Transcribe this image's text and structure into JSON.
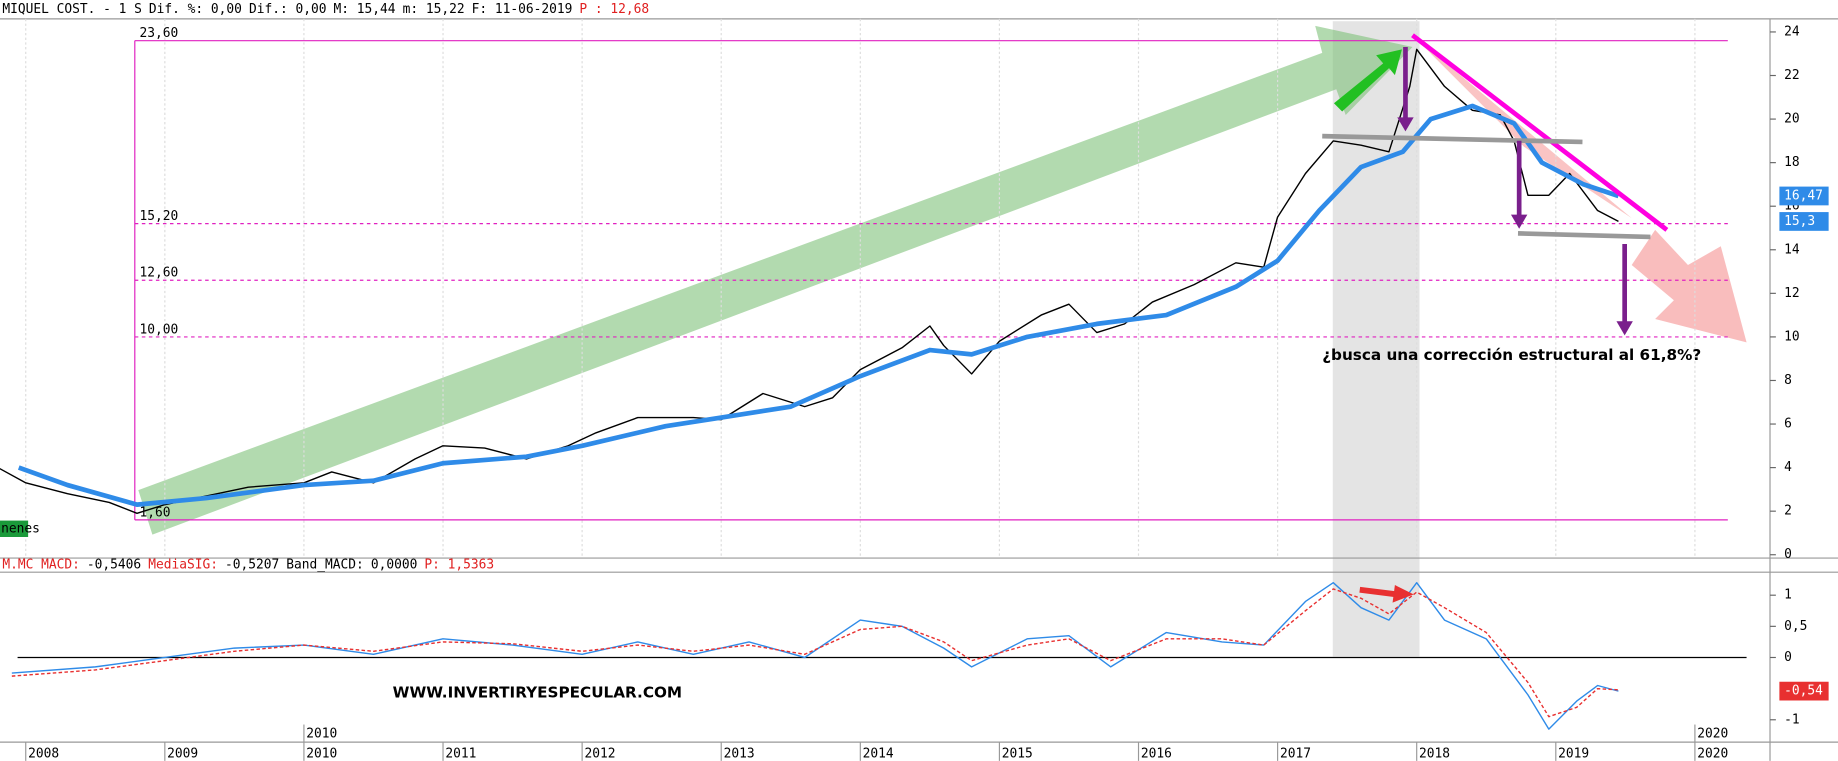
{
  "chart_data": [
    {
      "type": "line",
      "header": [
        {
          "text": "MIQUEL COST. -  1 S",
          "color": "#000000"
        },
        {
          "text": "Dif. %: 0,00",
          "color": "#000000"
        },
        {
          "text": "Dif.: 0,00",
          "color": "#000000"
        },
        {
          "text": "M: 15,44",
          "color": "#000000"
        },
        {
          "text": "m: 15,22",
          "color": "#000000"
        },
        {
          "text": "F: 11-06-2019",
          "color": "#000000"
        },
        {
          "text": "P : 12,68",
          "color": "#e02020"
        }
      ],
      "ylim": [
        -0.1,
        24.6
      ],
      "yticks": [
        0,
        2,
        4,
        6,
        8,
        10,
        12,
        14,
        16,
        18,
        20,
        22,
        24
      ],
      "levels": [
        {
          "value": 23.6,
          "label": "23,60",
          "dashed": false
        },
        {
          "value": 15.2,
          "label": "15,20",
          "dashed": true
        },
        {
          "value": 12.6,
          "label": "12,60",
          "dashed": true
        },
        {
          "value": 10,
          "label": "10,00",
          "dashed": true
        },
        {
          "value": 1.6,
          "label": "1,60",
          "dashed": false
        }
      ],
      "last_values": [
        {
          "value": 16.47,
          "label": "16,47",
          "color": "#2f8be8"
        },
        {
          "value": 15.3,
          "label": "15,3",
          "color": "#2f8be8"
        }
      ],
      "annotation": "¿busca una corrección estructural al 61,8%?",
      "side_label": "nenes",
      "series": [
        {
          "color": "#000000",
          "x": [
            2007.8,
            2008.0,
            2008.3,
            2008.6,
            2008.8,
            2009.0,
            2009.3,
            2009.6,
            2010.0,
            2010.2,
            2010.5,
            2010.8,
            2011.0,
            2011.3,
            2011.6,
            2011.9,
            2012.1,
            2012.4,
            2012.8,
            2013.0,
            2013.3,
            2013.6,
            2013.8,
            2014.0,
            2014.3,
            2014.5,
            2014.6,
            2014.8,
            2015.0,
            2015.3,
            2015.5,
            2015.7,
            2015.9,
            2016.1,
            2016.4,
            2016.7,
            2016.9,
            2017.0,
            2017.2,
            2017.4,
            2017.6,
            2017.8,
            2017.95,
            2018.0,
            2018.2,
            2018.4,
            2018.6,
            2018.7,
            2018.8,
            2018.95,
            2019.1,
            2019.3,
            2019.45
          ],
          "values": [
            4.0,
            3.3,
            2.8,
            2.4,
            1.9,
            2.3,
            2.7,
            3.1,
            3.3,
            3.8,
            3.3,
            4.4,
            5.0,
            4.9,
            4.4,
            5.0,
            5.6,
            6.3,
            6.3,
            6.2,
            7.4,
            6.8,
            7.2,
            8.5,
            9.5,
            10.5,
            9.6,
            8.3,
            9.8,
            11.0,
            11.5,
            10.2,
            10.6,
            11.6,
            12.4,
            13.4,
            13.2,
            15.5,
            17.5,
            19.0,
            18.8,
            18.5,
            21.5,
            23.2,
            21.5,
            20.4,
            20.2,
            19.0,
            16.5,
            16.5,
            17.5,
            15.8,
            15.3
          ]
        },
        {
          "color": "#2f8be8",
          "x": [
            2007.95,
            2008.3,
            2008.8,
            2009.3,
            2010.0,
            2010.5,
            2011.0,
            2011.6,
            2012.0,
            2012.6,
            2013.0,
            2013.5,
            2014.0,
            2014.5,
            2014.8,
            2015.2,
            2015.7,
            2016.2,
            2016.7,
            2017.0,
            2017.3,
            2017.6,
            2017.9,
            2018.1,
            2018.4,
            2018.7,
            2018.9,
            2019.2,
            2019.45
          ],
          "values": [
            4.0,
            3.2,
            2.3,
            2.6,
            3.2,
            3.4,
            4.2,
            4.5,
            5.0,
            5.9,
            6.3,
            6.8,
            8.2,
            9.4,
            9.2,
            10.0,
            10.6,
            11.0,
            12.3,
            13.5,
            15.8,
            17.8,
            18.5,
            20.0,
            20.6,
            19.8,
            18.0,
            17.0,
            16.47
          ]
        }
      ]
    },
    {
      "type": "line",
      "header": [
        {
          "text": "M.MC MACD:",
          "color": "#e02020"
        },
        {
          "text": "-0,5406",
          "color": "#000000"
        },
        {
          "text": "MediaSIG:",
          "color": "#e02020"
        },
        {
          "text": "-0,5207",
          "color": "#000000"
        },
        {
          "text": "Band_MACD:",
          "color": "#000000"
        },
        {
          "text": "0,0000",
          "color": "#000000"
        },
        {
          "text": "P: 1,5363",
          "color": "#e02020"
        }
      ],
      "xlim": [
        2007.815,
        2020.54
      ],
      "xticks": [
        2008,
        2009,
        2010,
        2011,
        2012,
        2013,
        2014,
        2015,
        2016,
        2017,
        2018,
        2019,
        2020
      ],
      "decade_ticks": [
        2010,
        2020
      ],
      "ylim": [
        -1.34,
        1.37
      ],
      "yticks": [
        1,
        {
          "value": 0.5,
          "label": "0,5"
        },
        0,
        -1
      ],
      "last_values": [
        {
          "value": -0.54,
          "label": "-0,54",
          "color": "#e83030"
        }
      ],
      "watermark": "WWW.INVERTIRYESPECULAR.COM",
      "series": [
        {
          "color": "#2f8be8",
          "dashed": false,
          "x": [
            2007.9,
            2008.5,
            2009.0,
            2009.5,
            2010.0,
            2010.5,
            2011.0,
            2011.5,
            2012.0,
            2012.4,
            2012.8,
            2013.2,
            2013.6,
            2014.0,
            2014.3,
            2014.6,
            2014.8,
            2015.2,
            2015.5,
            2015.8,
            2016.2,
            2016.6,
            2016.9,
            2017.2,
            2017.4,
            2017.6,
            2017.8,
            2018.0,
            2018.2,
            2018.5,
            2018.8,
            2018.95,
            2019.15,
            2019.3,
            2019.45
          ],
          "values": [
            -0.25,
            -0.15,
            0.0,
            0.15,
            0.2,
            0.05,
            0.3,
            0.2,
            0.05,
            0.25,
            0.05,
            0.25,
            0.0,
            0.6,
            0.5,
            0.15,
            -0.15,
            0.3,
            0.35,
            -0.15,
            0.4,
            0.25,
            0.2,
            0.9,
            1.2,
            0.8,
            0.6,
            1.2,
            0.6,
            0.3,
            -0.6,
            -1.15,
            -0.7,
            -0.45,
            -0.54
          ]
        },
        {
          "color": "#e83030",
          "dashed": true,
          "x": [
            2007.9,
            2008.5,
            2009.0,
            2009.5,
            2010.0,
            2010.5,
            2011.0,
            2011.5,
            2012.0,
            2012.4,
            2012.8,
            2013.2,
            2013.6,
            2014.0,
            2014.3,
            2014.6,
            2014.8,
            2015.2,
            2015.5,
            2015.8,
            2016.2,
            2016.6,
            2016.9,
            2017.2,
            2017.4,
            2017.6,
            2017.8,
            2018.0,
            2018.2,
            2018.5,
            2018.8,
            2018.95,
            2019.15,
            2019.3,
            2019.45
          ],
          "values": [
            -0.3,
            -0.2,
            -0.05,
            0.1,
            0.2,
            0.1,
            0.25,
            0.22,
            0.1,
            0.2,
            0.1,
            0.2,
            0.05,
            0.45,
            0.5,
            0.25,
            -0.05,
            0.2,
            0.3,
            -0.05,
            0.3,
            0.3,
            0.2,
            0.75,
            1.1,
            0.95,
            0.7,
            1.05,
            0.8,
            0.4,
            -0.4,
            -0.95,
            -0.8,
            -0.5,
            -0.52
          ]
        }
      ]
    }
  ]
}
